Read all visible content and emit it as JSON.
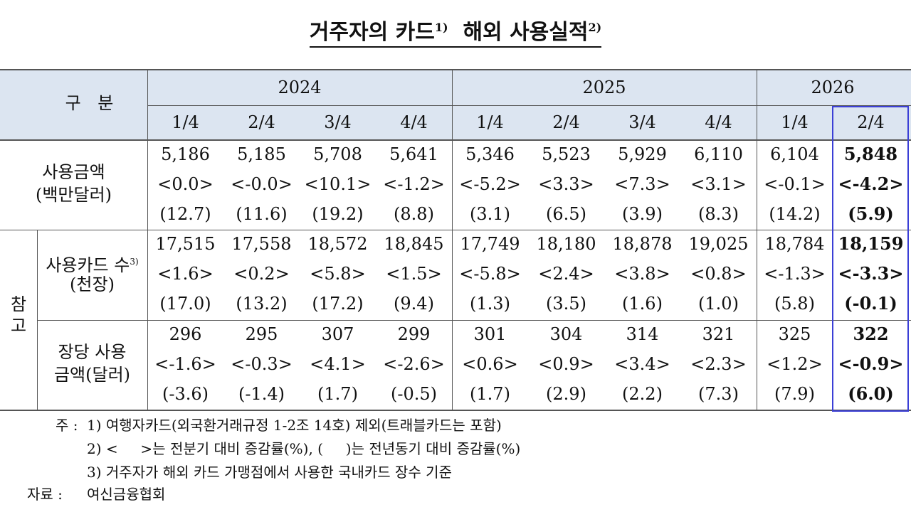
{
  "title": {
    "text": "거주자의 카드",
    "note": "1)",
    "text2": "해외 사용실적",
    "note2": "2)"
  },
  "table": {
    "corner": "구 분",
    "side_label": "참고",
    "years": [
      "2024",
      "2025",
      "2026"
    ],
    "quarters": [
      "1/4",
      "2/4",
      "3/4",
      "4/4",
      "1/4",
      "2/4",
      "3/4",
      "4/4",
      "1/4",
      "2/4"
    ],
    "rows": [
      {
        "label": [
          "사용금액",
          "(백만달러)"
        ],
        "values": [
          "5,186",
          "5,185",
          "5,708",
          "5,641",
          "5,346",
          "5,523",
          "5,929",
          "6,110",
          "6,104",
          "5,848"
        ],
        "qoq": [
          "<0.0>",
          "<-0.0>",
          "<10.1>",
          "<-1.2>",
          "<-5.2>",
          "<3.3>",
          "<7.3>",
          "<3.1>",
          "<-0.1>",
          "<-4.2>"
        ],
        "yoy": [
          "(12.7)",
          "(11.6)",
          "(19.2)",
          "(8.8)",
          "(3.1)",
          "(6.5)",
          "(3.9)",
          "(8.3)",
          "(14.2)",
          "(5.9)"
        ]
      },
      {
        "label": [
          "사용카드 수",
          "(천장)"
        ],
        "label_note": "3)",
        "values": [
          "17,515",
          "17,558",
          "18,572",
          "18,845",
          "17,749",
          "18,180",
          "18,878",
          "19,025",
          "18,784",
          "18,159"
        ],
        "qoq": [
          "<1.6>",
          "<0.2>",
          "<5.8>",
          "<1.5>",
          "<-5.8>",
          "<2.4>",
          "<3.8>",
          "<0.8>",
          "<-1.3>",
          "<-3.3>"
        ],
        "yoy": [
          "(17.0)",
          "(13.2)",
          "(17.2)",
          "(9.4)",
          "(1.3)",
          "(3.5)",
          "(1.6)",
          "(1.0)",
          "(5.8)",
          "(-0.1)"
        ]
      },
      {
        "label": [
          "장당 사용",
          "금액(달러)"
        ],
        "values": [
          "296",
          "295",
          "307",
          "299",
          "301",
          "304",
          "314",
          "321",
          "325",
          "322"
        ],
        "qoq": [
          "<-1.6>",
          "<-0.3>",
          "<4.1>",
          "<-2.6>",
          "<0.6>",
          "<0.9>",
          "<3.4>",
          "<2.3>",
          "<1.2>",
          "<-0.9>"
        ],
        "yoy": [
          "(-3.6)",
          "(-1.4)",
          "(1.7)",
          "(-0.5)",
          "(1.7)",
          "(2.9)",
          "(2.2)",
          "(7.3)",
          "(7.9)",
          "(6.0)"
        ]
      }
    ]
  },
  "notes": {
    "heading": "주 :",
    "items": [
      "1) 여행자카드(외국환거래규정 1-2조 14호) 제외(트래블카드는 포함)",
      "2) <     >는 전분기 대비 증감률(%), (     )는 전년동기 대비 증감률(%)",
      "3) 거주자가 해외 카드 가맹점에서 사용한 국내카드 장수 기준"
    ],
    "source_heading": "자료 :",
    "source": "여신금융협회"
  }
}
